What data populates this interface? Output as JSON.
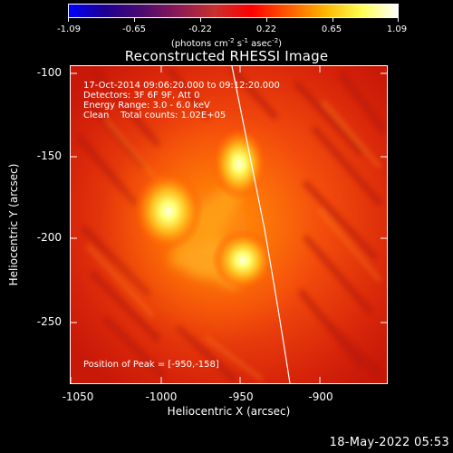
{
  "colorbar": {
    "colors": [
      "#0000ff",
      "#1e0090",
      "#4b0a6e",
      "#8c1a55",
      "#c8302e",
      "#ff0000",
      "#ff5a00",
      "#ffb400",
      "#ffff50",
      "#ffffff"
    ],
    "tick_labels": [
      "-1.09",
      "-0.65",
      "-0.22",
      "0.22",
      "0.65",
      "1.09"
    ],
    "units_prefix": "(photons cm",
    "units_exp1": "-2",
    "units_mid1": " s",
    "units_exp2": "-1",
    "units_mid2": " asec",
    "units_exp3": "-2",
    "units_suffix": ")"
  },
  "title": "Reconstructed RHESSI Image",
  "annotations": {
    "time": "17-Oct-2014 09:06:20.000 to 09:12:20.000",
    "detectors": "Detectors: 3F 6F 9F, Att 0",
    "energy": "Energy Range: 3.0 - 6.0 keV",
    "clean": "Clean    Total counts: 1.02E+05",
    "peak": "Position of Peak = [-950,-158]"
  },
  "axes": {
    "xlabel": "Heliocentric X (arcsec)",
    "ylabel": "Heliocentric Y (arcsec)",
    "xticks": [
      "-1050",
      "-1000",
      "-950",
      "-900"
    ],
    "yticks": [
      "-100",
      "-150",
      "-200",
      "-250"
    ]
  },
  "timestamp": "18-May-2022 05:53"
}
